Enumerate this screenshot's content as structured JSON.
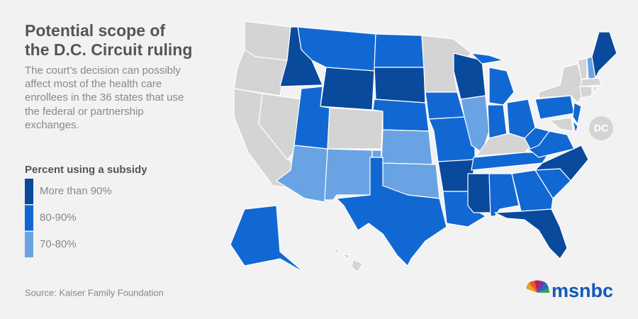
{
  "header": {
    "title_lines": [
      "Potential scope of",
      "the D.C. Circuit ruling"
    ],
    "subtitle_lines": [
      "The court’s decision can possibly",
      "affect most of the health care",
      "enrollees in the 36 states that use",
      "the federal or partnership",
      "exchanges."
    ]
  },
  "legend": {
    "title": "Percent using a subsidy",
    "items": [
      {
        "label": "More than 90%",
        "color": "#0a4a9c"
      },
      {
        "label": "80-90%",
        "color": "#1268d3"
      },
      {
        "label": "70-80%",
        "color": "#6aa3e3"
      }
    ]
  },
  "map": {
    "other_color": "#d4d4d4",
    "dc_label": "DC"
  },
  "footer": {
    "source": "Source: Kaiser Family Foundation",
    "logo": "msnbc"
  }
}
